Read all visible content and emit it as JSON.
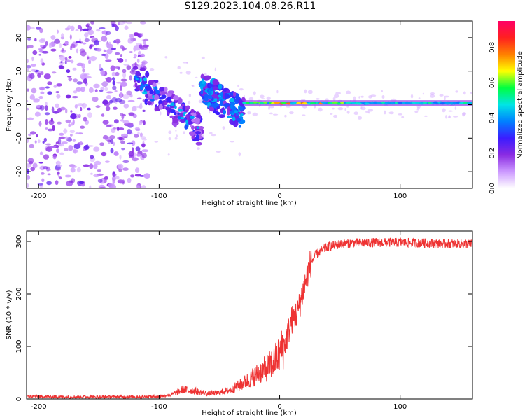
{
  "figure": {
    "title": "S129.2023.104.08.26.R11"
  },
  "chart_data": [
    {
      "type": "heatmap",
      "xlabel": "Height of straight line (km)",
      "ylabel": "Frequency (Hz)",
      "xlim": [
        -210,
        160
      ],
      "ylim": [
        -25,
        25
      ],
      "x_ticks": [
        -200,
        -100,
        0,
        100
      ],
      "y_ticks": [
        -20,
        -10,
        0,
        10,
        20
      ],
      "colorbar": {
        "label": "Normalized spectral amplitude",
        "range": [
          0,
          0.95
        ],
        "ticks": [
          0.0,
          0.2,
          0.4,
          0.6,
          0.8
        ],
        "tick_labels": [
          "0.0",
          "0.2",
          "0.4",
          "0.6",
          "0.8"
        ],
        "colormap": [
          "#ffffff",
          "#cc99ff",
          "#8a2be2",
          "#3b1cff",
          "#0080ff",
          "#00e5e5",
          "#00ff40",
          "#ffff00",
          "#ff8000",
          "#ff2020",
          "#ff0066"
        ]
      },
      "features": [
        {
          "description": "broad noise",
          "x_range": [
            -210,
            -120
          ],
          "freq_range": [
            -25,
            25
          ],
          "amplitude": 0.15
        },
        {
          "description": "descending band",
          "x_range": [
            -120,
            -65
          ],
          "freq_range": [
            8,
            -8
          ],
          "amplitude": 0.25
        },
        {
          "description": "descending band",
          "x_range": [
            -65,
            -30
          ],
          "freq_range": [
            5,
            -3
          ],
          "amplitude": 0.35
        },
        {
          "description": "carrier",
          "x_range": [
            -30,
            160
          ],
          "freq_range": [
            0.5,
            0.5
          ],
          "amplitude": 0.85
        }
      ]
    },
    {
      "type": "line",
      "xlabel": "Height of straight line (km)",
      "ylabel": "SNR (10 * v/v)",
      "xlim": [
        -210,
        160
      ],
      "ylim": [
        0,
        320
      ],
      "x_ticks": [
        -200,
        -100,
        0,
        100
      ],
      "y_ticks": [
        0,
        100,
        200,
        300
      ],
      "color": "#ee3333",
      "series": [
        {
          "x": [
            -210,
            -180,
            -150,
            -120,
            -100,
            -90,
            -80,
            -70,
            -60,
            -50,
            -40,
            -30,
            -20,
            -10,
            -5,
            0,
            5,
            10,
            15,
            20,
            25,
            30,
            40,
            50,
            60,
            80,
            100,
            120,
            140,
            160
          ],
          "y": [
            5,
            4,
            4,
            4,
            5,
            8,
            18,
            15,
            10,
            12,
            18,
            30,
            45,
            60,
            70,
            85,
            110,
            150,
            165,
            210,
            255,
            275,
            290,
            295,
            297,
            298,
            298,
            297,
            296,
            295
          ]
        }
      ]
    }
  ]
}
